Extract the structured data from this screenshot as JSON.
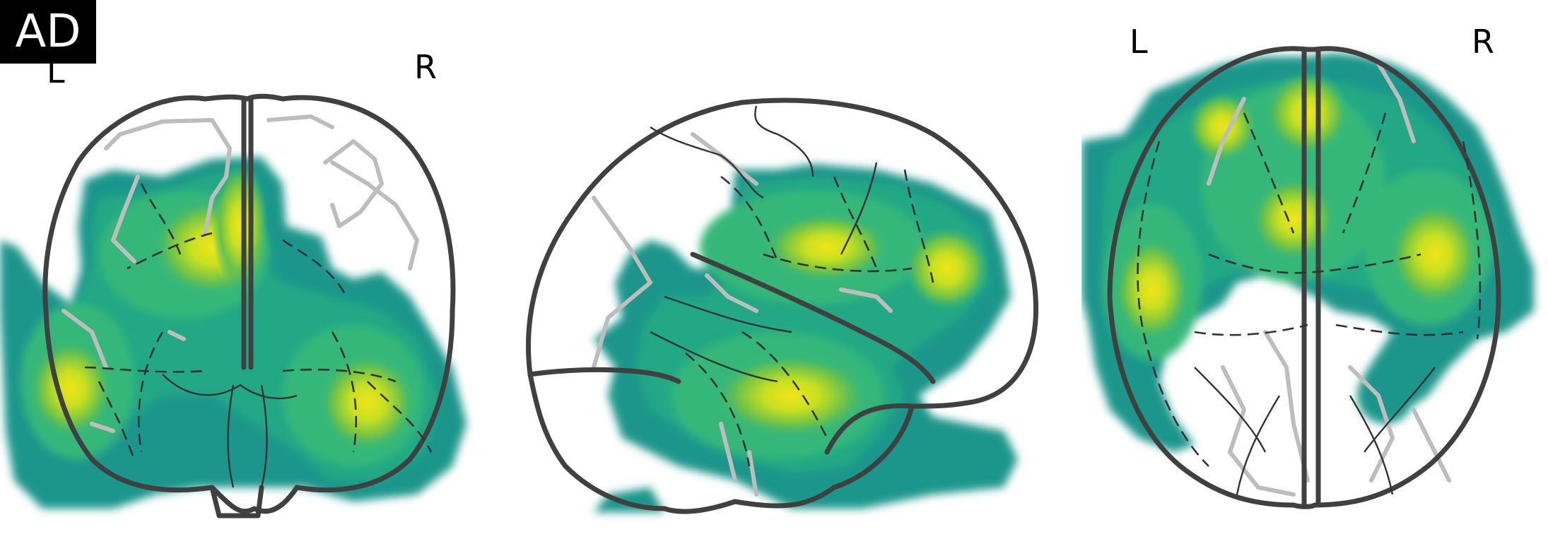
{
  "label": "AD",
  "views": {
    "coronal": {
      "left": "L",
      "right": "R"
    },
    "axial": {
      "left": "L",
      "right": "R"
    }
  },
  "colors": {
    "low": "#1f968b",
    "mid": "#3cb56b",
    "high": "#b5de2b",
    "peak": "#f0e51a",
    "outline": "#404040",
    "background": "#ffffff"
  }
}
